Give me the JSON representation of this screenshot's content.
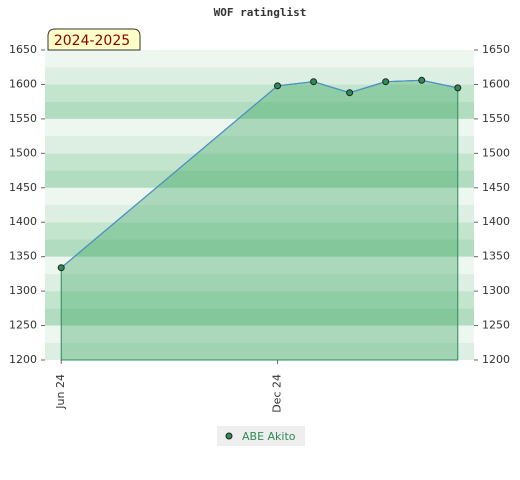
{
  "chart_data": {
    "type": "line",
    "title": "WOF ratinglist",
    "badge": "2024-2025",
    "x": [
      0,
      6,
      7,
      8,
      9,
      10,
      11
    ],
    "series": [
      {
        "name": "ABE Akito",
        "color": "#2e8b57",
        "values": [
          1334,
          1598,
          1604,
          1588,
          1604,
          1606,
          1595
        ]
      }
    ],
    "xlim": [
      -0.45,
      11.45
    ],
    "xticks": [
      {
        "value": 0,
        "label": "Jun 24"
      },
      {
        "value": 6,
        "label": "Dec 24"
      }
    ],
    "ylim": [
      1200,
      1650
    ],
    "yticks": [
      1200,
      1250,
      1300,
      1350,
      1400,
      1450,
      1500,
      1550,
      1600,
      1650
    ],
    "grid": true
  }
}
